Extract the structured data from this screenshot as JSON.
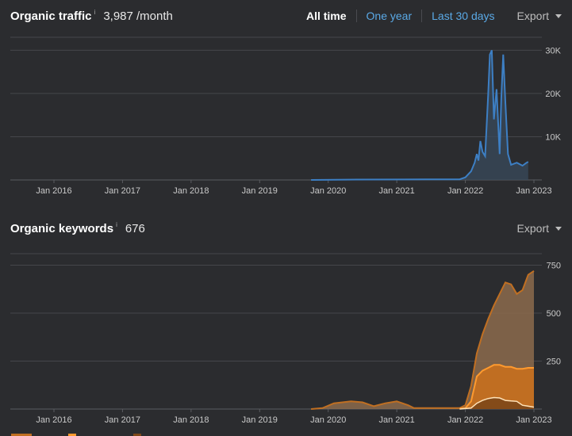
{
  "traffic": {
    "title": "Organic traffic",
    "info_mark": "i",
    "metric": "3,987 /month",
    "range_tabs": [
      {
        "label": "All time",
        "active": true
      },
      {
        "label": "One year",
        "active": false
      },
      {
        "label": "Last 30 days",
        "active": false
      }
    ],
    "export_label": "Export"
  },
  "keywords": {
    "title": "Organic keywords",
    "info_mark": "i",
    "metric": "676",
    "export_label": "Export"
  },
  "colors": {
    "background": "#2b2c2f",
    "traffic_line": "#3d7fc4",
    "traffic_fill": "#3a4a5c",
    "keywords_outer_line": "#c06f22",
    "keywords_outer_fill": "#8c6b4c",
    "keywords_mid_line": "#ff9a2e",
    "keywords_mid_fill": "#c8701e",
    "keywords_inner_line": "#ffe2b8",
    "keywords_inner_fill": "#7d4718",
    "link": "#5aa9e6"
  },
  "chart_data": [
    {
      "type": "line",
      "title": "Organic traffic",
      "x_ticks": [
        "Jan 2016",
        "Jan 2017",
        "Jan 2018",
        "Jan 2019",
        "Jan 2020",
        "Jan 2021",
        "Jan 2022",
        "Jan 2023"
      ],
      "y_ticks": [
        "10K",
        "20K",
        "30K"
      ],
      "ylim": [
        0,
        33000
      ],
      "grid": true,
      "series": [
        {
          "points": [
            [
              "2019-10",
              0
            ],
            [
              "2020-06",
              100
            ],
            [
              "2021-06",
              120
            ],
            [
              "2021-12",
              150
            ],
            [
              "2022-01",
              600
            ],
            [
              "2022-02",
              2000
            ],
            [
              "2022-02-20",
              4000
            ],
            [
              "2022-03",
              6000
            ],
            [
              "2022-03-10",
              4500
            ],
            [
              "2022-03-20",
              9000
            ],
            [
              "2022-04",
              6500
            ],
            [
              "2022-04-15",
              5500
            ],
            [
              "2022-05",
              20000
            ],
            [
              "2022-05-10",
              29000
            ],
            [
              "2022-05-20",
              30000
            ],
            [
              "2022-06",
              14000
            ],
            [
              "2022-06-15",
              21000
            ],
            [
              "2022-07",
              6000
            ],
            [
              "2022-07-10",
              19000
            ],
            [
              "2022-07-20",
              29000
            ],
            [
              "2022-08",
              18000
            ],
            [
              "2022-08-15",
              6000
            ],
            [
              "2022-09",
              3500
            ],
            [
              "2022-10",
              4000
            ],
            [
              "2022-11",
              3300
            ],
            [
              "2022-11-20",
              3900
            ],
            [
              "2022-12",
              4200
            ]
          ]
        }
      ]
    },
    {
      "type": "area",
      "title": "Organic keywords",
      "x_ticks": [
        "Jan 2016",
        "Jan 2017",
        "Jan 2018",
        "Jan 2019",
        "Jan 2020",
        "Jan 2021",
        "Jan 2022",
        "Jan 2023"
      ],
      "y_ticks": [
        "250",
        "500",
        "750"
      ],
      "ylim": [
        0,
        810
      ],
      "grid": true,
      "series": [
        {
          "role": "outer",
          "points": [
            [
              "2019-10",
              0
            ],
            [
              "2019-12",
              5
            ],
            [
              "2020-02",
              30
            ],
            [
              "2020-05",
              40
            ],
            [
              "2020-07",
              35
            ],
            [
              "2020-09",
              15
            ],
            [
              "2020-11",
              30
            ],
            [
              "2021-01",
              40
            ],
            [
              "2021-03",
              20
            ],
            [
              "2021-04",
              5
            ],
            [
              "2021-12",
              5
            ],
            [
              "2022-01",
              20
            ],
            [
              "2022-02",
              120
            ],
            [
              "2022-03",
              290
            ],
            [
              "2022-04",
              390
            ],
            [
              "2022-05",
              470
            ],
            [
              "2022-06",
              540
            ],
            [
              "2022-07",
              600
            ],
            [
              "2022-08",
              660
            ],
            [
              "2022-09",
              650
            ],
            [
              "2022-10",
              600
            ],
            [
              "2022-11",
              620
            ],
            [
              "2022-12",
              700
            ],
            [
              "2023-01",
              720
            ]
          ]
        },
        {
          "role": "middle",
          "points": [
            [
              "2021-12",
              2
            ],
            [
              "2022-01",
              5
            ],
            [
              "2022-02",
              40
            ],
            [
              "2022-03",
              170
            ],
            [
              "2022-04",
              200
            ],
            [
              "2022-05",
              215
            ],
            [
              "2022-06",
              230
            ],
            [
              "2022-07",
              230
            ],
            [
              "2022-08",
              220
            ],
            [
              "2022-09",
              220
            ],
            [
              "2022-10",
              210
            ],
            [
              "2022-11",
              210
            ],
            [
              "2022-12",
              215
            ],
            [
              "2023-01",
              215
            ]
          ]
        },
        {
          "role": "inner",
          "points": [
            [
              "2021-12",
              0
            ],
            [
              "2022-02",
              5
            ],
            [
              "2022-03",
              30
            ],
            [
              "2022-04",
              45
            ],
            [
              "2022-05",
              55
            ],
            [
              "2022-06",
              60
            ],
            [
              "2022-07",
              58
            ],
            [
              "2022-08",
              45
            ],
            [
              "2022-09",
              42
            ],
            [
              "2022-10",
              40
            ],
            [
              "2022-11",
              20
            ],
            [
              "2022-12",
              15
            ],
            [
              "2023-01",
              10
            ]
          ]
        }
      ]
    }
  ]
}
